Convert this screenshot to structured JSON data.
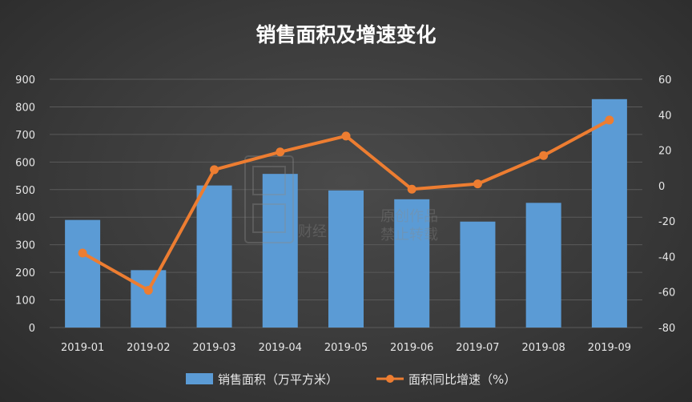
{
  "chart_data": {
    "type": "bar",
    "title": "销售面积及增速变化",
    "categories": [
      "2019-01",
      "2019-02",
      "2019-03",
      "2019-04",
      "2019-05",
      "2019-06",
      "2019-07",
      "2019-08",
      "2019-09"
    ],
    "series": [
      {
        "name": "销售面积（万平方米）",
        "type": "bar",
        "axis": "left",
        "color": "#5b9bd5",
        "values": [
          390,
          208,
          515,
          557,
          497,
          465,
          384,
          452,
          828
        ]
      },
      {
        "name": "面积同比增速（%）",
        "type": "line",
        "axis": "right",
        "color": "#ed7d31",
        "values": [
          -38,
          -59,
          9,
          19,
          28,
          -2,
          1,
          17,
          37
        ]
      }
    ],
    "y_left": {
      "min": 0,
      "max": 900,
      "step": 100,
      "ticks": [
        "0",
        "100",
        "200",
        "300",
        "400",
        "500",
        "600",
        "700",
        "800",
        "900"
      ]
    },
    "y_right": {
      "min": -80,
      "max": 60,
      "step": 20,
      "ticks": [
        "-80",
        "-60",
        "-40",
        "-20",
        "0",
        "20",
        "40",
        "60"
      ]
    },
    "grid": true,
    "legend_position": "bottom"
  },
  "watermark": {
    "lines": [
      "原创作品",
      "禁止转载"
    ],
    "brand": "财经"
  }
}
